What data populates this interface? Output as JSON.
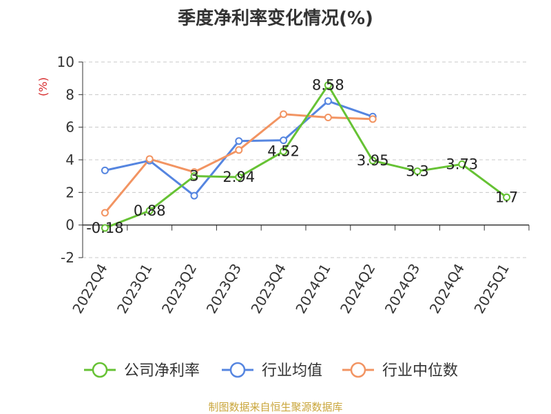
{
  "chart_data": {
    "type": "line",
    "title": "季度净利率变化情况(%)",
    "ylabel": "(%)",
    "xlabel": "",
    "ylim": [
      -2,
      10
    ],
    "yticks": [
      "-2",
      "0",
      "2",
      "4",
      "6",
      "8",
      "10"
    ],
    "ytick_values": [
      -2,
      0,
      2,
      4,
      6,
      8,
      10
    ],
    "categories": [
      "2022Q4",
      "2023Q1",
      "2023Q2",
      "2023Q3",
      "2023Q4",
      "2024Q1",
      "2024Q2",
      "2024Q3",
      "2024Q4",
      "2025Q1"
    ],
    "grid": true,
    "legend": "bottom",
    "series": [
      {
        "name": "公司净利率",
        "color": "#66c234",
        "values": [
          -0.18,
          0.88,
          3,
          2.94,
          4.52,
          8.58,
          3.95,
          3.3,
          3.73,
          1.7
        ],
        "labels": [
          "-0.18",
          "0.88",
          "3",
          "2.94",
          "4.52",
          "8.58",
          "3.95",
          "3.3",
          "3.73",
          "1.7"
        ]
      },
      {
        "name": "行业均值",
        "color": "#5585e0",
        "values": [
          3.35,
          3.95,
          1.8,
          5.15,
          5.2,
          7.6,
          6.65,
          null,
          null,
          null
        ]
      },
      {
        "name": "行业中位数",
        "color": "#f29462",
        "values": [
          0.75,
          4.05,
          3.25,
          4.6,
          6.8,
          6.6,
          6.5,
          null,
          null,
          null
        ]
      }
    ]
  },
  "source": "制图数据来自恒生聚源数据库"
}
